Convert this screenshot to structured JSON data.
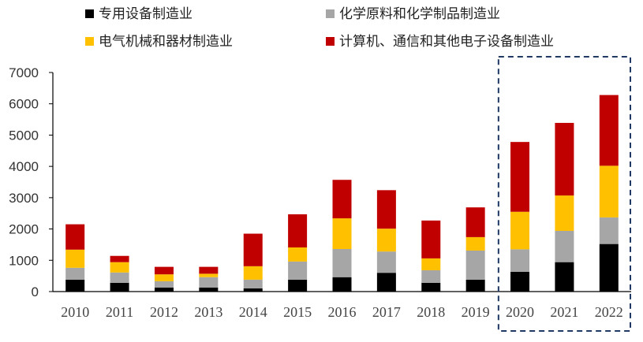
{
  "chart_data": {
    "type": "bar",
    "stacked": true,
    "title": "",
    "xlabel": "",
    "ylabel": "",
    "ylim": [
      0,
      7000
    ],
    "yticks": [
      0,
      1000,
      2000,
      3000,
      4000,
      5000,
      6000,
      7000
    ],
    "grid": false,
    "legend_position": "top",
    "categories": [
      "2010",
      "2011",
      "2012",
      "2013",
      "2014",
      "2015",
      "2016",
      "2017",
      "2018",
      "2019",
      "2020",
      "2021",
      "2022"
    ],
    "series": [
      {
        "name": "专用设备制造业",
        "color": "#000000",
        "values": [
          380,
          280,
          130,
          130,
          100,
          380,
          460,
          600,
          280,
          380,
          630,
          940,
          1520
        ]
      },
      {
        "name": "化学原料和化学制品制造业",
        "color": "#a6a6a6",
        "values": [
          380,
          330,
          200,
          330,
          280,
          580,
          900,
          680,
          400,
          930,
          720,
          1000,
          850
        ]
      },
      {
        "name": "电气机械和器材制造业",
        "color": "#ffc000",
        "values": [
          580,
          330,
          220,
          110,
          430,
          450,
          980,
          730,
          380,
          430,
          1200,
          1130,
          1650
        ]
      },
      {
        "name": "计算机、通信和其他电子设备制造业",
        "color": "#c00000",
        "values": [
          810,
          200,
          240,
          220,
          1040,
          1060,
          1230,
          1230,
          1210,
          950,
          2230,
          2320,
          2260
        ]
      }
    ],
    "highlight": {
      "categories": [
        "2020",
        "2021",
        "2022"
      ],
      "style": "dashed-box",
      "color": "#1f3864"
    }
  }
}
